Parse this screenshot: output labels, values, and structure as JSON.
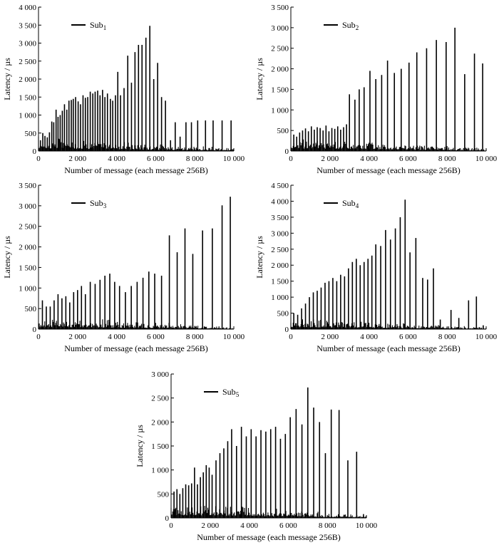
{
  "figure": {
    "xlabel": "Number of message (each message 256B)",
    "ylabel": "Latency / µs"
  },
  "chart_data": [
    {
      "type": "bar",
      "title": "Sub1",
      "legend": {
        "base": "Sub",
        "sub": "1",
        "position": "top-left"
      },
      "xlabel": "Number of message (each message 256B)",
      "ylabel": "Latency / µs",
      "xlim": [
        0,
        10000
      ],
      "ylim": [
        0,
        4000
      ],
      "xticks": [
        0,
        2000,
        4000,
        6000,
        8000,
        10000
      ],
      "xtick_labels": [
        "0",
        "2 000",
        "4 000",
        "6 000",
        "8 000",
        "10 000"
      ],
      "yticks": [
        0,
        500,
        1000,
        1500,
        2000,
        2500,
        3000,
        3500,
        4000
      ],
      "ytick_labels": [
        "0",
        "500",
        "1 000",
        "1 500",
        "2 000",
        "2 500",
        "3 000",
        "3 500",
        "4 000"
      ],
      "x": [
        100,
        220,
        330,
        450,
        560,
        680,
        780,
        900,
        1000,
        1110,
        1220,
        1330,
        1450,
        1560,
        1680,
        1780,
        1900,
        2030,
        2150,
        2280,
        2400,
        2520,
        2650,
        2780,
        2900,
        3030,
        3150,
        3280,
        3400,
        3530,
        3680,
        3800,
        3940,
        4060,
        4200,
        4380,
        4570,
        4760,
        4940,
        5120,
        5300,
        5500,
        5700,
        5900,
        6100,
        6300,
        6500,
        6760,
        7000,
        7250,
        7550,
        7830,
        8150,
        8550,
        8940,
        9400,
        9860
      ],
      "values": [
        300,
        500,
        420,
        380,
        520,
        820,
        800,
        1150,
        950,
        1000,
        1120,
        1300,
        1150,
        1400,
        1420,
        1450,
        1500,
        1380,
        1300,
        1550,
        1480,
        1500,
        1650,
        1600,
        1650,
        1680,
        1550,
        1700,
        1500,
        1600,
        1450,
        1400,
        1550,
        2200,
        1550,
        1750,
        2650,
        1900,
        2750,
        2950,
        2950,
        3150,
        3480,
        2000,
        2450,
        1500,
        1400,
        300,
        800,
        400,
        800,
        800,
        850,
        850,
        850,
        850,
        850
      ],
      "noise_x": [
        0,
        10000
      ],
      "noise_values": [
        480,
        80
      ],
      "note": "dense low-latency background noise decaying across the run"
    },
    {
      "type": "bar",
      "title": "Sub2",
      "legend": {
        "base": "Sub",
        "sub": "2",
        "position": "top-left"
      },
      "xlabel": "Number of message (each message 256B)",
      "ylabel": "Latency / µs",
      "xlim": [
        0,
        10000
      ],
      "ylim": [
        0,
        3500
      ],
      "xticks": [
        0,
        2000,
        4000,
        6000,
        8000,
        10000
      ],
      "xtick_labels": [
        "0",
        "2 000",
        "4 000",
        "6 000",
        "8 000",
        "10 000"
      ],
      "yticks": [
        0,
        500,
        1000,
        1500,
        2000,
        2500,
        3000,
        3500
      ],
      "ytick_labels": [
        "0",
        "500",
        "1 000",
        "1 500",
        "2 000",
        "2 500",
        "3 000",
        "3 500"
      ],
      "x": [
        150,
        300,
        450,
        600,
        750,
        900,
        1050,
        1200,
        1350,
        1500,
        1650,
        1800,
        1950,
        2100,
        2250,
        2400,
        2550,
        2700,
        2850,
        3000,
        3280,
        3500,
        3750,
        4050,
        4350,
        4650,
        4950,
        5300,
        5650,
        6050,
        6450,
        6950,
        7450,
        7950,
        8400,
        8900,
        9400,
        9820
      ],
      "values": [
        400,
        350,
        450,
        500,
        550,
        480,
        600,
        520,
        580,
        560,
        500,
        620,
        480,
        560,
        540,
        600,
        520,
        580,
        650,
        1380,
        1250,
        1500,
        1550,
        1950,
        1750,
        1850,
        2200,
        1900,
        2000,
        2150,
        2400,
        2500,
        2700,
        2650,
        3000,
        1870,
        2370,
        2130
      ],
      "noise_x": [
        0,
        10000
      ],
      "noise_values": [
        420,
        70
      ],
      "note": "dense low-latency background noise decaying across the run"
    },
    {
      "type": "bar",
      "title": "Sub3",
      "legend": {
        "base": "Sub",
        "sub": "3",
        "position": "top-left"
      },
      "xlabel": "Number of message (each message 256B)",
      "ylabel": "Latency / µs",
      "xlim": [
        0,
        10000
      ],
      "ylim": [
        0,
        3500
      ],
      "xticks": [
        0,
        2000,
        4000,
        6000,
        8000,
        10000
      ],
      "xtick_labels": [
        "0",
        "2 000",
        "4 000",
        "6 000",
        "8 000",
        "10 000"
      ],
      "yticks": [
        0,
        500,
        1000,
        1500,
        2000,
        2500,
        3000,
        3500
      ],
      "ytick_labels": [
        "0",
        "500",
        "1 000",
        "1 500",
        "2 000",
        "2 500",
        "3 000",
        "3 500"
      ],
      "x": [
        200,
        400,
        600,
        800,
        1000,
        1200,
        1400,
        1600,
        1800,
        2000,
        2200,
        2400,
        2650,
        2900,
        3150,
        3400,
        3650,
        3900,
        4150,
        4450,
        4750,
        5050,
        5350,
        5650,
        5950,
        6300,
        6700,
        7100,
        7500,
        7900,
        8400,
        8900,
        9400,
        9820
      ],
      "values": [
        700,
        550,
        550,
        700,
        850,
        750,
        800,
        650,
        900,
        950,
        1050,
        850,
        1150,
        1100,
        1200,
        1300,
        1350,
        1150,
        1050,
        900,
        1050,
        1150,
        1250,
        1400,
        1350,
        1300,
        2280,
        1870,
        2450,
        1830,
        2400,
        2450,
        3010,
        3220
      ],
      "noise_x": [
        0,
        10000
      ],
      "noise_values": [
        350,
        60
      ],
      "note": "dense low-latency background noise decaying across the run"
    },
    {
      "type": "bar",
      "title": "Sub4",
      "legend": {
        "base": "Sub",
        "sub": "4",
        "position": "top-left"
      },
      "xlabel": "Number of message (each message 256B)",
      "ylabel": "Latency / µs",
      "xlim": [
        0,
        10000
      ],
      "ylim": [
        0,
        4500
      ],
      "xticks": [
        0,
        2000,
        4000,
        6000,
        8000,
        10000
      ],
      "xtick_labels": [
        "0",
        "2 000",
        "4 000",
        "6 000",
        "8 000",
        "10 000"
      ],
      "yticks": [
        0,
        500,
        1000,
        1500,
        2000,
        2500,
        3000,
        3500,
        4000,
        4500
      ],
      "ytick_labels": [
        "0",
        "500",
        "1 000",
        "1 500",
        "2 000",
        "2 500",
        "3 000",
        "3 500",
        "4 000",
        "4 500"
      ],
      "x": [
        150,
        350,
        550,
        750,
        950,
        1150,
        1350,
        1550,
        1750,
        1950,
        2150,
        2350,
        2550,
        2750,
        2950,
        3150,
        3350,
        3550,
        3750,
        3950,
        4150,
        4350,
        4600,
        4850,
        5100,
        5350,
        5600,
        5850,
        6100,
        6400,
        6750,
        7000,
        7300,
        7650,
        8200,
        8600,
        9100,
        9500,
        9850
      ],
      "values": [
        500,
        450,
        650,
        800,
        1000,
        1150,
        1200,
        1300,
        1450,
        1500,
        1600,
        1500,
        1700,
        1650,
        1900,
        2100,
        2200,
        2000,
        2100,
        2200,
        2300,
        2650,
        2600,
        3100,
        2800,
        3150,
        3500,
        4050,
        2400,
        2850,
        1600,
        1550,
        1900,
        300,
        600,
        350,
        900,
        1020,
        120
      ],
      "noise_x": [
        0,
        10000
      ],
      "noise_values": [
        420,
        60
      ],
      "note": "dense low-latency background noise decaying across the run"
    },
    {
      "type": "bar",
      "title": "Sub5",
      "legend": {
        "base": "Sub",
        "sub": "5",
        "position": "top-left"
      },
      "xlabel": "Number of message (each message 256B)",
      "ylabel": "Latency / µs",
      "xlim": [
        0,
        10000
      ],
      "ylim": [
        0,
        3000
      ],
      "xticks": [
        0,
        2000,
        4000,
        6000,
        8000,
        10000
      ],
      "xtick_labels": [
        "0",
        "2 000",
        "4 000",
        "6 000",
        "8 000",
        "10 000"
      ],
      "yticks": [
        0,
        500,
        1000,
        1500,
        2000,
        2500,
        3000
      ],
      "ytick_labels": [
        "0",
        "500",
        "1 000",
        "1 500",
        "2 000",
        "2 500",
        "3 000"
      ],
      "x": [
        150,
        300,
        450,
        600,
        750,
        900,
        1050,
        1200,
        1350,
        1500,
        1650,
        1800,
        1950,
        2100,
        2300,
        2500,
        2700,
        2900,
        3100,
        3350,
        3600,
        3850,
        4100,
        4350,
        4600,
        4850,
        5100,
        5350,
        5600,
        5850,
        6100,
        6400,
        6700,
        7000,
        7300,
        7600,
        7900,
        8200,
        8600,
        9050,
        9500,
        9850
      ],
      "values": [
        550,
        600,
        500,
        620,
        700,
        680,
        720,
        1050,
        700,
        850,
        950,
        1100,
        1050,
        900,
        1200,
        1350,
        1450,
        1600,
        1850,
        1500,
        1900,
        1700,
        1850,
        1700,
        1830,
        1800,
        1850,
        1900,
        1650,
        1750,
        2100,
        2270,
        1950,
        2720,
        2300,
        2000,
        1350,
        2260,
        2250,
        1200,
        1380,
        80
      ],
      "noise_x": [
        0,
        10000
      ],
      "noise_values": [
        380,
        60
      ],
      "note": "dense low-latency background noise decaying across the run"
    }
  ]
}
